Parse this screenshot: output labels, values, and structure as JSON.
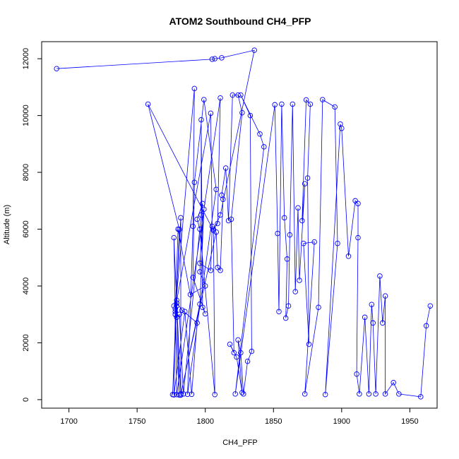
{
  "chart_data": {
    "type": "scatter",
    "title": "ATOM2 Southbound CH4_PFP",
    "xlabel": "CH4_PFP",
    "ylabel": "Altitude (m)",
    "xlim": [
      1680,
      1970
    ],
    "ylim": [
      -300,
      12600
    ],
    "xticks": [
      1700,
      1750,
      1800,
      1850,
      1900,
      1950
    ],
    "yticks": [
      0,
      2000,
      4000,
      6000,
      8000,
      10000,
      12000
    ],
    "grid": false,
    "legend": "none",
    "series_color": "#0000ff",
    "points": [
      [
        1691,
        11650
      ],
      [
        1805,
        11980
      ],
      [
        1807,
        12000
      ],
      [
        1812,
        12030
      ],
      [
        1836,
        12300
      ],
      [
        1811,
        6500
      ],
      [
        1806,
        5950
      ],
      [
        1758,
        10400
      ],
      [
        1781,
        5990
      ],
      [
        1776,
        180
      ],
      [
        1779,
        3300
      ],
      [
        1778,
        3100
      ],
      [
        1792,
        10950
      ],
      [
        1791,
        6100
      ],
      [
        1787,
        190
      ],
      [
        1808,
        7400
      ],
      [
        1799,
        10560
      ],
      [
        1792,
        7650
      ],
      [
        1791,
        4300
      ],
      [
        1800,
        3020
      ],
      [
        1798,
        3250
      ],
      [
        1797,
        9850
      ],
      [
        1797,
        6500
      ],
      [
        1784,
        200
      ],
      [
        1781,
        3000
      ],
      [
        1779,
        2900
      ],
      [
        1778,
        3200
      ],
      [
        1804,
        10080
      ],
      [
        1805,
        6100
      ],
      [
        1804,
        4550
      ],
      [
        1796,
        4800
      ],
      [
        1799,
        6700
      ],
      [
        1796,
        3360
      ],
      [
        1782,
        160
      ],
      [
        1779,
        3500
      ],
      [
        1777,
        3300
      ],
      [
        1779,
        3400
      ],
      [
        1777,
        5700
      ],
      [
        1779,
        180
      ],
      [
        1811,
        10620
      ],
      [
        1809,
        6200
      ],
      [
        1806,
        6000
      ],
      [
        1807,
        180
      ],
      [
        1796,
        6000
      ],
      [
        1794,
        6350
      ],
      [
        1798,
        6900
      ],
      [
        1796,
        4500
      ],
      [
        1800,
        4000
      ],
      [
        1789,
        3700
      ],
      [
        1780,
        6000
      ],
      [
        1778,
        3000
      ],
      [
        1777,
        170
      ],
      [
        1785,
        3100
      ],
      [
        1790,
        190
      ],
      [
        1794,
        2700
      ],
      [
        1783,
        3150
      ],
      [
        1779,
        3400
      ],
      [
        1781,
        160
      ],
      [
        1778,
        3000
      ],
      [
        1782,
        6400
      ],
      [
        1782,
        200
      ],
      [
        1808,
        5900
      ],
      [
        1809,
        4650
      ],
      [
        1811,
        4550
      ],
      [
        1813,
        7050
      ],
      [
        1812,
        7200
      ],
      [
        1815,
        8150
      ],
      [
        1817,
        6300
      ],
      [
        1820,
        10720
      ],
      [
        1824,
        10720
      ],
      [
        1827,
        10100
      ],
      [
        1819,
        6350
      ],
      [
        1821,
        1650
      ],
      [
        1818,
        1950
      ],
      [
        1823,
        1500
      ],
      [
        1827,
        250
      ],
      [
        1824,
        2100
      ],
      [
        1826,
        1650
      ],
      [
        1828,
        200
      ],
      [
        1831,
        1350
      ],
      [
        1834,
        1700
      ],
      [
        1833,
        10000
      ],
      [
        1826,
        10720
      ],
      [
        1840,
        9350
      ],
      [
        1843,
        8900
      ],
      [
        1822,
        200
      ],
      [
        1851,
        10380
      ],
      [
        1853,
        5850
      ],
      [
        1854,
        3100
      ],
      [
        1856,
        10400
      ],
      [
        1858,
        6400
      ],
      [
        1860,
        4950
      ],
      [
        1859,
        2870
      ],
      [
        1861,
        3300
      ],
      [
        1862,
        5800
      ],
      [
        1864,
        10400
      ],
      [
        1866,
        3800
      ],
      [
        1868,
        6750
      ],
      [
        1869,
        4200
      ],
      [
        1873,
        7600
      ],
      [
        1871,
        6300
      ],
      [
        1874,
        10550
      ],
      [
        1877,
        10400
      ],
      [
        1875,
        7800
      ],
      [
        1876,
        1950
      ],
      [
        1872,
        5500
      ],
      [
        1880,
        5550
      ],
      [
        1873,
        200
      ],
      [
        1883,
        3250
      ],
      [
        1886,
        10560
      ],
      [
        1895,
        10300
      ],
      [
        1897,
        5500
      ],
      [
        1888,
        180
      ],
      [
        1899,
        9700
      ],
      [
        1900,
        9550
      ],
      [
        1905,
        5050
      ],
      [
        1910,
        7000
      ],
      [
        1912,
        6900
      ],
      [
        1912,
        5700
      ],
      [
        1911,
        900
      ],
      [
        1913,
        200
      ],
      [
        1917,
        2900
      ],
      [
        1920,
        200
      ],
      [
        1922,
        3350
      ],
      [
        1923,
        2700
      ],
      [
        1925,
        200
      ],
      [
        1928,
        4350
      ],
      [
        1930,
        2700
      ],
      [
        1932,
        3650
      ],
      [
        1932,
        200
      ],
      [
        1938,
        600
      ],
      [
        1942,
        200
      ],
      [
        1958,
        100
      ],
      [
        1962,
        2600
      ],
      [
        1965,
        3300
      ]
    ],
    "path": [
      [
        1691,
        11650
      ],
      [
        1805,
        11980
      ],
      [
        1807,
        12000
      ],
      [
        1812,
        12030
      ],
      [
        1836,
        12300
      ],
      [
        1811,
        6500
      ],
      [
        1806,
        5950
      ],
      [
        1758,
        10400
      ],
      [
        1781,
        5990
      ],
      [
        1776,
        180
      ],
      [
        1779,
        3300
      ],
      [
        1778,
        3100
      ],
      [
        1792,
        10950
      ],
      [
        1791,
        6100
      ],
      [
        1787,
        190
      ],
      [
        1808,
        7400
      ],
      [
        1799,
        10560
      ],
      [
        1792,
        7650
      ],
      [
        1791,
        4300
      ],
      [
        1800,
        3020
      ],
      [
        1798,
        3250
      ],
      [
        1797,
        9850
      ],
      [
        1797,
        6500
      ],
      [
        1784,
        200
      ],
      [
        1781,
        3000
      ],
      [
        1779,
        2900
      ],
      [
        1778,
        3200
      ],
      [
        1804,
        10080
      ],
      [
        1805,
        6100
      ],
      [
        1804,
        4550
      ],
      [
        1796,
        4800
      ],
      [
        1799,
        6700
      ],
      [
        1796,
        3360
      ],
      [
        1782,
        160
      ],
      [
        1779,
        3500
      ],
      [
        1777,
        3300
      ],
      [
        1779,
        3400
      ],
      [
        1777,
        5700
      ],
      [
        1779,
        180
      ],
      [
        1811,
        10620
      ],
      [
        1809,
        6200
      ],
      [
        1806,
        6000
      ],
      [
        1807,
        180
      ],
      [
        1796,
        6000
      ],
      [
        1794,
        6350
      ],
      [
        1798,
        6900
      ],
      [
        1796,
        4500
      ],
      [
        1800,
        4000
      ],
      [
        1789,
        3700
      ],
      [
        1780,
        6000
      ],
      [
        1778,
        3000
      ],
      [
        1777,
        170
      ],
      [
        1785,
        3100
      ],
      [
        1790,
        190
      ],
      [
        1794,
        2700
      ],
      [
        1783,
        3150
      ],
      [
        1779,
        3400
      ],
      [
        1781,
        160
      ],
      [
        1778,
        3000
      ],
      [
        1782,
        6400
      ],
      [
        1782,
        200
      ],
      [
        1808,
        5900
      ],
      [
        1809,
        4650
      ],
      [
        1811,
        4550
      ],
      [
        1813,
        7050
      ],
      [
        1812,
        7200
      ],
      [
        1815,
        8150
      ],
      [
        1817,
        6300
      ],
      [
        1820,
        10720
      ],
      [
        1824,
        10720
      ],
      [
        1827,
        10100
      ],
      [
        1819,
        6350
      ],
      [
        1821,
        1650
      ],
      [
        1818,
        1950
      ],
      [
        1823,
        1500
      ],
      [
        1827,
        250
      ],
      [
        1824,
        2100
      ],
      [
        1826,
        1650
      ],
      [
        1828,
        200
      ],
      [
        1831,
        1350
      ],
      [
        1834,
        1700
      ],
      [
        1833,
        10000
      ],
      [
        1826,
        10720
      ],
      [
        1840,
        9350
      ],
      [
        1843,
        8900
      ],
      [
        1822,
        200
      ],
      [
        1851,
        10380
      ],
      [
        1853,
        5850
      ],
      [
        1854,
        3100
      ],
      [
        1856,
        10400
      ],
      [
        1858,
        6400
      ],
      [
        1860,
        4950
      ],
      [
        1859,
        2870
      ],
      [
        1861,
        3300
      ],
      [
        1862,
        5800
      ],
      [
        1864,
        10400
      ],
      [
        1866,
        3800
      ],
      [
        1868,
        6750
      ],
      [
        1869,
        4200
      ],
      [
        1873,
        7600
      ],
      [
        1871,
        6300
      ],
      [
        1874,
        10550
      ],
      [
        1877,
        10400
      ],
      [
        1875,
        7800
      ],
      [
        1876,
        1950
      ],
      [
        1872,
        5500
      ],
      [
        1880,
        5550
      ],
      [
        1873,
        200
      ],
      [
        1883,
        3250
      ],
      [
        1886,
        10560
      ],
      [
        1895,
        10300
      ],
      [
        1897,
        5500
      ],
      [
        1888,
        180
      ],
      [
        1899,
        9700
      ],
      [
        1900,
        9550
      ],
      [
        1905,
        5050
      ],
      [
        1910,
        7000
      ],
      [
        1912,
        6900
      ],
      [
        1912,
        5700
      ],
      [
        1911,
        900
      ],
      [
        1913,
        200
      ],
      [
        1917,
        2900
      ],
      [
        1920,
        200
      ],
      [
        1922,
        3350
      ],
      [
        1923,
        2700
      ],
      [
        1925,
        200
      ],
      [
        1928,
        4350
      ],
      [
        1930,
        2700
      ],
      [
        1932,
        3650
      ],
      [
        1932,
        200
      ],
      [
        1938,
        600
      ],
      [
        1942,
        200
      ],
      [
        1958,
        100
      ],
      [
        1962,
        2600
      ],
      [
        1965,
        3300
      ]
    ]
  }
}
